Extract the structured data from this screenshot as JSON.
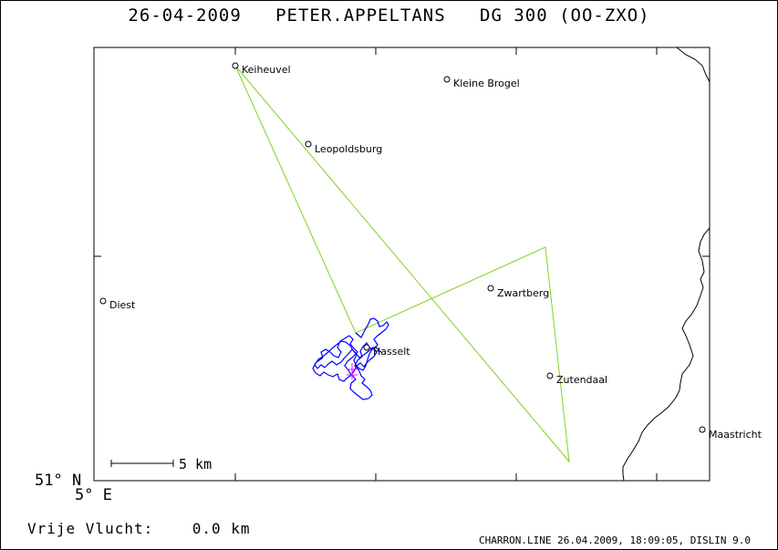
{
  "header": {
    "date": "26-04-2009",
    "pilot": "PETER.APPELTANS",
    "glider": "DG 300 (OO-ZXO)"
  },
  "map": {
    "lat_label": "51° N",
    "lon_label": "5° E",
    "scale_label": "5 km",
    "colors": {
      "task": "#7ed321",
      "track": "#0000ff",
      "marker": "#ff00ff",
      "border": "#000000"
    },
    "places": [
      "Keiheuvel",
      "Kleine Brogel",
      "Leopoldsburg",
      "Diest",
      "Zwartberg",
      "Hasselt",
      "Zutendaal",
      "Maastricht"
    ]
  },
  "footer": {
    "free_flight_label": "Vrije Vlucht:",
    "free_flight_value": "0.0 km",
    "credits": "CHARRON.LINE 26.04.2009, 18:09:05, DISLIN 9.0"
  }
}
